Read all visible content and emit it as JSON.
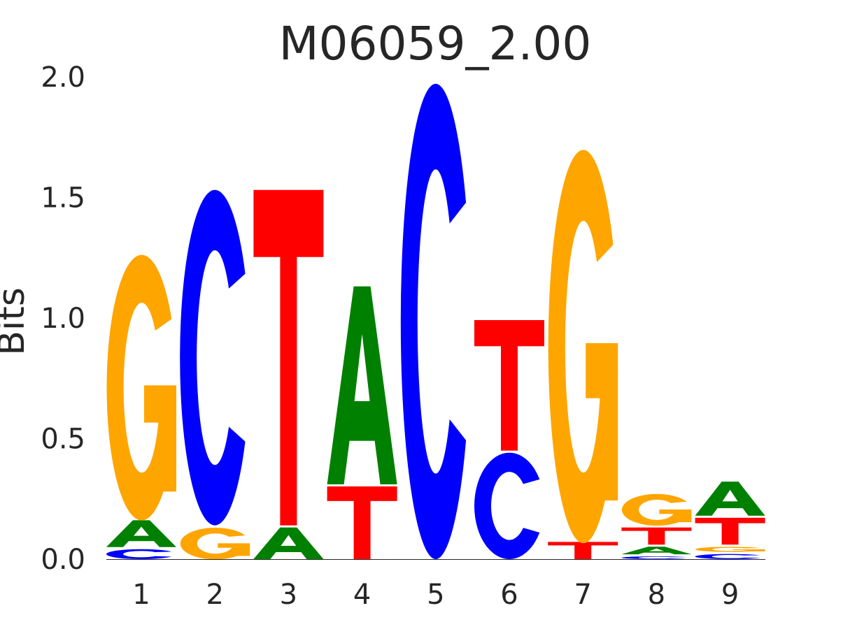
{
  "chart_data": {
    "type": "sequence-logo",
    "title": "M06059_2.00",
    "xlabel": "",
    "ylabel": "Bits",
    "ylim": [
      0,
      2.0
    ],
    "yticks": [
      "0.0",
      "0.5",
      "1.0",
      "1.5",
      "2.0"
    ],
    "grid": false,
    "colors": {
      "A": "#008000",
      "C": "#0000ff",
      "G": "#ffa500",
      "T": "#ff0000"
    },
    "positions": [
      {
        "label": "1",
        "stack": [
          {
            "base": "C",
            "bits": 0.05
          },
          {
            "base": "A",
            "bits": 0.12
          },
          {
            "base": "G",
            "bits": 1.11
          }
        ]
      },
      {
        "label": "2",
        "stack": [
          {
            "base": "G",
            "bits": 0.14
          },
          {
            "base": "C",
            "bits": 1.4
          }
        ]
      },
      {
        "label": "3",
        "stack": [
          {
            "base": "A",
            "bits": 0.14
          },
          {
            "base": "T",
            "bits": 1.4
          }
        ]
      },
      {
        "label": "4",
        "stack": [
          {
            "base": "T",
            "bits": 0.31
          },
          {
            "base": "A",
            "bits": 0.83
          }
        ]
      },
      {
        "label": "5",
        "stack": [
          {
            "base": "C",
            "bits": 1.98
          }
        ]
      },
      {
        "label": "6",
        "stack": [
          {
            "base": "C",
            "bits": 0.45
          },
          {
            "base": "T",
            "bits": 0.55
          }
        ]
      },
      {
        "label": "7",
        "stack": [
          {
            "base": "T",
            "bits": 0.08
          },
          {
            "base": "G",
            "bits": 1.64
          }
        ]
      },
      {
        "label": "8",
        "stack": [
          {
            "base": "C",
            "bits": 0.02
          },
          {
            "base": "A",
            "bits": 0.04
          },
          {
            "base": "T",
            "bits": 0.08
          },
          {
            "base": "G",
            "bits": 0.14
          }
        ]
      },
      {
        "label": "9",
        "stack": [
          {
            "base": "C",
            "bits": 0.03
          },
          {
            "base": "G",
            "bits": 0.03
          },
          {
            "base": "T",
            "bits": 0.12
          },
          {
            "base": "A",
            "bits": 0.15
          }
        ]
      }
    ]
  }
}
